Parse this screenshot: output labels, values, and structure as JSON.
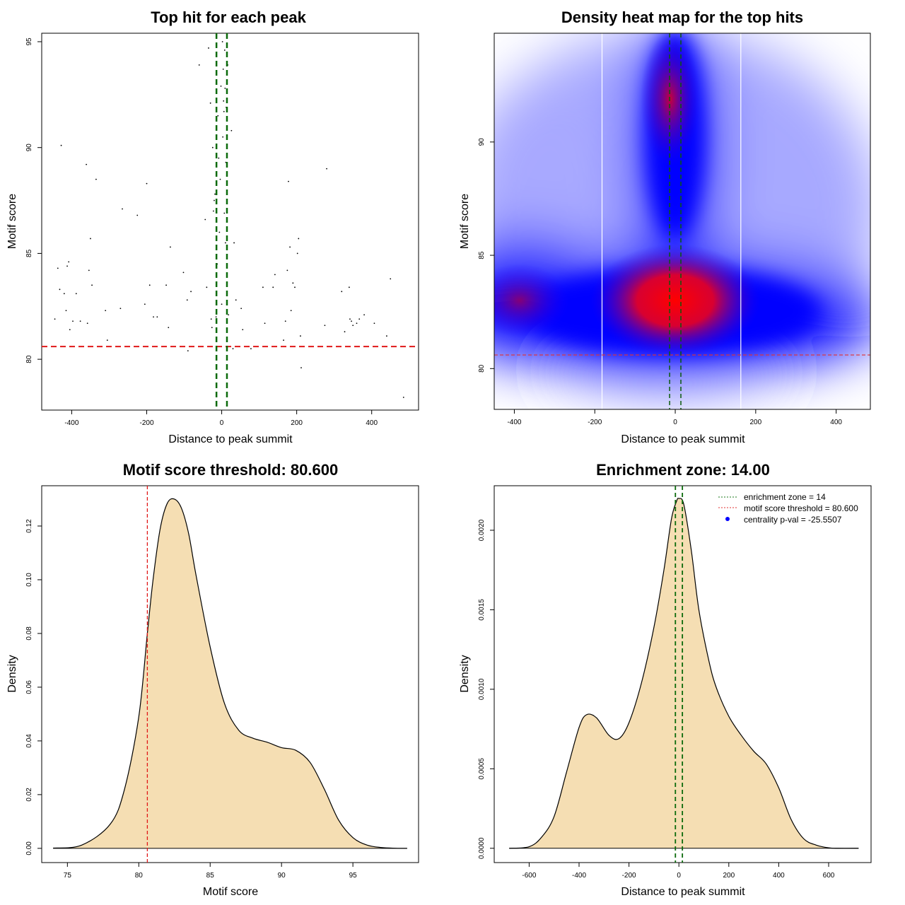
{
  "chart_data": [
    {
      "id": "scatter",
      "type": "scatter",
      "title": "Top hit for each peak",
      "xlabel": "Distance to peak summit",
      "ylabel": "Motif score",
      "xlim": [
        -480,
        525
      ],
      "ylim": [
        77.6,
        95.4
      ],
      "xticks": [
        "-400",
        "-200",
        "0",
        "200",
        "400"
      ],
      "yticks": [
        "80",
        "85",
        "90",
        "95"
      ],
      "hline": 80.6,
      "vlines": [
        -14,
        14
      ],
      "points": [
        [
          -445,
          81.9
        ],
        [
          -437,
          84.3
        ],
        [
          -432,
          83.3
        ],
        [
          -428,
          90.1
        ],
        [
          -420,
          83.1
        ],
        [
          -415,
          82.3
        ],
        [
          -412,
          84.4
        ],
        [
          -408,
          84.6
        ],
        [
          -405,
          81.4
        ],
        [
          -397,
          81.8
        ],
        [
          -388,
          83.1
        ],
        [
          -377,
          81.8
        ],
        [
          -361,
          89.2
        ],
        [
          -358,
          81.7
        ],
        [
          -354,
          84.2
        ],
        [
          -350,
          85.7
        ],
        [
          -346,
          83.5
        ],
        [
          -335,
          88.5
        ],
        [
          -310,
          82.3
        ],
        [
          -305,
          80.9
        ],
        [
          -270,
          82.4
        ],
        [
          -265,
          87.1
        ],
        [
          -225,
          86.8
        ],
        [
          -205,
          82.6
        ],
        [
          -200,
          88.3
        ],
        [
          -192,
          83.5
        ],
        [
          -182,
          82.0
        ],
        [
          -172,
          82.0
        ],
        [
          -148,
          83.5
        ],
        [
          -142,
          81.5
        ],
        [
          -137,
          85.3
        ],
        [
          -102,
          84.1
        ],
        [
          -92,
          82.8
        ],
        [
          -90,
          80.4
        ],
        [
          -82,
          83.2
        ],
        [
          -60,
          93.9
        ],
        [
          -44,
          86.6
        ],
        [
          -40,
          83.4
        ],
        [
          -35,
          94.7
        ],
        [
          -30,
          92.1
        ],
        [
          -28,
          81.9
        ],
        [
          -26,
          81.5
        ],
        [
          -24,
          90.0
        ],
        [
          -22,
          87.0
        ],
        [
          -20,
          87.5
        ],
        [
          -18,
          87.8
        ],
        [
          -15,
          82.0
        ],
        [
          -12,
          84.5
        ],
        [
          -10,
          91.5
        ],
        [
          -8,
          89.5
        ],
        [
          -6,
          86.0
        ],
        [
          -4,
          88.5
        ],
        [
          -2,
          92.9
        ],
        [
          0,
          82.6
        ],
        [
          2,
          95.0
        ],
        [
          3,
          90.5
        ],
        [
          4,
          93.7
        ],
        [
          5,
          92.2
        ],
        [
          6,
          91.7
        ],
        [
          7,
          86.9
        ],
        [
          8,
          94.6
        ],
        [
          9,
          92.8
        ],
        [
          10,
          85.5
        ],
        [
          11,
          89.3
        ],
        [
          12,
          91.9
        ],
        [
          14,
          83.0
        ],
        [
          16,
          93.9
        ],
        [
          18,
          82.1
        ],
        [
          26,
          90.8
        ],
        [
          30,
          80.5
        ],
        [
          33,
          85.5
        ],
        [
          38,
          82.8
        ],
        [
          52,
          82.4
        ],
        [
          56,
          81.4
        ],
        [
          78,
          80.5
        ],
        [
          115,
          81.7
        ],
        [
          110,
          83.4
        ],
        [
          137,
          83.4
        ],
        [
          142,
          84.0
        ],
        [
          165,
          80.9
        ],
        [
          170,
          81.8
        ],
        [
          175,
          84.2
        ],
        [
          178,
          88.4
        ],
        [
          182,
          85.3
        ],
        [
          185,
          82.3
        ],
        [
          190,
          83.6
        ],
        [
          195,
          83.4
        ],
        [
          202,
          85.0
        ],
        [
          205,
          85.7
        ],
        [
          210,
          81.1
        ],
        [
          212,
          79.6
        ],
        [
          275,
          81.6
        ],
        [
          280,
          89.0
        ],
        [
          320,
          83.2
        ],
        [
          328,
          81.3
        ],
        [
          340,
          83.4
        ],
        [
          342,
          81.9
        ],
        [
          346,
          81.8
        ],
        [
          350,
          81.6
        ],
        [
          360,
          81.7
        ],
        [
          367,
          81.9
        ],
        [
          380,
          82.1
        ],
        [
          407,
          81.7
        ],
        [
          440,
          81.1
        ],
        [
          450,
          83.8
        ],
        [
          485,
          78.2
        ]
      ]
    },
    {
      "id": "heatmap",
      "type": "heatmap",
      "title": "Density heat map for the top hits",
      "xlabel": "Distance to peak summit",
      "ylabel": "Motif score",
      "xlim": [
        -450,
        485
      ],
      "ylim": [
        78.2,
        94.8
      ],
      "xticks": [
        "-400",
        "-200",
        "0",
        "200",
        "400"
      ],
      "yticks": [
        "80",
        "85",
        "90"
      ],
      "hline": 80.6,
      "vlines": [
        -14,
        14
      ],
      "white_vlines": [
        -182,
        163
      ]
    },
    {
      "id": "score-density",
      "type": "area",
      "title": "Motif score threshold: 80.600",
      "xlabel": "Motif score",
      "ylabel": "Density",
      "xlim": [
        73.2,
        99.6
      ],
      "ylim": [
        -0.0053,
        0.135
      ],
      "xticks": [
        "75",
        "80",
        "85",
        "90",
        "95"
      ],
      "yticks": [
        "0.00",
        "0.02",
        "0.04",
        "0.06",
        "0.08",
        "0.10",
        "0.12"
      ],
      "vline": 80.6,
      "x": [
        74,
        76,
        78,
        79,
        80,
        80.6,
        81,
        81.5,
        82,
        82.5,
        83,
        83.5,
        84,
        85,
        86,
        87,
        88,
        89,
        90,
        91,
        92,
        93,
        94,
        95,
        96,
        97,
        98,
        98.8
      ],
      "y": [
        0.0001,
        0.0012,
        0.009,
        0.022,
        0.049,
        0.08,
        0.1,
        0.119,
        0.1285,
        0.13,
        0.1265,
        0.117,
        0.102,
        0.075,
        0.054,
        0.044,
        0.041,
        0.0395,
        0.0375,
        0.0365,
        0.032,
        0.022,
        0.0105,
        0.004,
        0.0012,
        0.0003,
        5e-05,
        0.0
      ]
    },
    {
      "id": "distance-density",
      "type": "area",
      "title": "Enrichment zone: 14.00",
      "xlabel": "Distance to peak summit",
      "ylabel": "Density",
      "xlim": [
        -740,
        770
      ],
      "ylim": [
        -9e-05,
        0.00228
      ],
      "xticks": [
        "-600",
        "-400",
        "-200",
        "0",
        "200",
        "400",
        "600"
      ],
      "yticks": [
        "0.0000",
        "0.0005",
        "0.0010",
        "0.0015",
        "0.0020"
      ],
      "vlines": [
        -14,
        14
      ],
      "legend": [
        {
          "label": "enrichment zone = 14",
          "color": "#1b7a1b",
          "style": "dotted-line"
        },
        {
          "label": "motif score threshold = 80.600",
          "color": "#e03030",
          "style": "dotted-line"
        },
        {
          "label": "centrality p-val = -25.5507",
          "color": "#0000ff",
          "style": "dot"
        }
      ],
      "legend_position": "top-right",
      "x": [
        -680,
        -600,
        -550,
        -500,
        -450,
        -400,
        -370,
        -330,
        -280,
        -240,
        -200,
        -150,
        -100,
        -60,
        -30,
        -10,
        0,
        20,
        50,
        80,
        120,
        150,
        200,
        250,
        300,
        350,
        400,
        450,
        500,
        550,
        600,
        640,
        720
      ],
      "y": [
        0.0,
        1e-05,
        7e-05,
        0.0002,
        0.00048,
        0.00076,
        0.00084,
        0.00082,
        0.00071,
        0.00069,
        0.00079,
        0.00104,
        0.00139,
        0.00175,
        0.00207,
        0.00218,
        0.0022,
        0.00216,
        0.00187,
        0.0015,
        0.00118,
        0.00101,
        0.00083,
        0.00071,
        0.00061,
        0.00053,
        0.00038,
        0.00018,
        6e-05,
        2e-05,
        3e-06,
        0.0,
        0.0
      ]
    }
  ]
}
